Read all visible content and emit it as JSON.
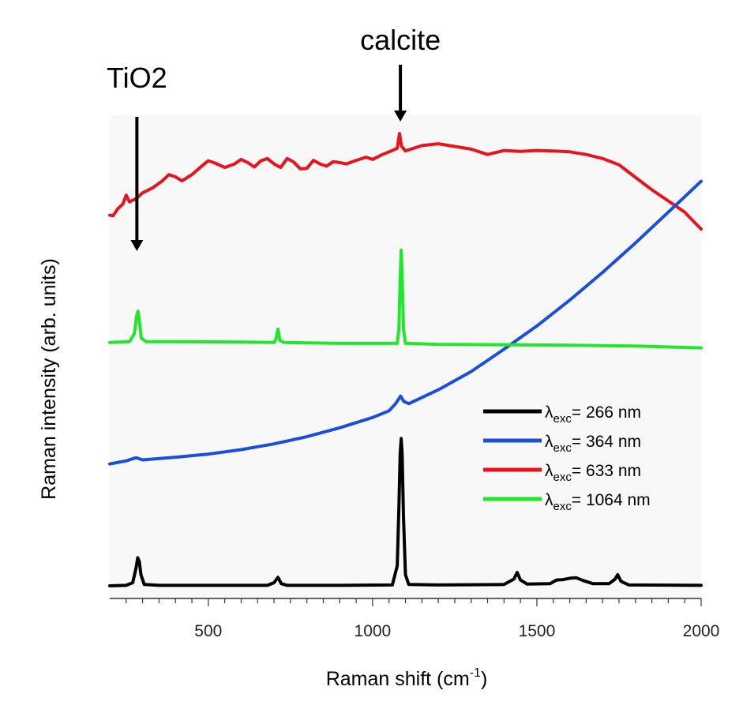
{
  "chart_data": {
    "type": "line",
    "xlabel": "Raman shift (cm",
    "xlabel_sup": "-1",
    "xlabel_end": ")",
    "ylabel": "Raman intensity (arb. units)",
    "xlim": [
      200,
      2000
    ],
    "ylim": [
      0,
      100
    ],
    "x_ticks": [
      {
        "value": 500,
        "label": "500"
      },
      {
        "value": 1000,
        "label": "1000"
      },
      {
        "value": 1500,
        "label": "1500"
      },
      {
        "value": 2000,
        "label": "2000"
      }
    ],
    "annotations": [
      {
        "text": "TiO2",
        "x": 285
      },
      {
        "text": "calcite",
        "x": 1087
      }
    ],
    "legend_position": "lower-right",
    "series": [
      {
        "name": "= 266 nm",
        "lambda": "λ",
        "sub": "exc",
        "color": "#000000",
        "points": [
          [
            200,
            2.5
          ],
          [
            250,
            2.6
          ],
          [
            270,
            3.2
          ],
          [
            280,
            6.5
          ],
          [
            285,
            8.8
          ],
          [
            290,
            8.0
          ],
          [
            295,
            5.0
          ],
          [
            305,
            2.8
          ],
          [
            350,
            2.6
          ],
          [
            500,
            2.6
          ],
          [
            680,
            2.6
          ],
          [
            700,
            3.2
          ],
          [
            712,
            4.4
          ],
          [
            722,
            3.0
          ],
          [
            740,
            2.6
          ],
          [
            900,
            2.6
          ],
          [
            1060,
            2.7
          ],
          [
            1075,
            7.0
          ],
          [
            1080,
            20.0
          ],
          [
            1084,
            32.0
          ],
          [
            1087,
            35.5
          ],
          [
            1090,
            32.0
          ],
          [
            1094,
            18.0
          ],
          [
            1100,
            5.0
          ],
          [
            1110,
            2.8
          ],
          [
            1200,
            2.7
          ],
          [
            1400,
            2.8
          ],
          [
            1430,
            4.0
          ],
          [
            1440,
            5.5
          ],
          [
            1450,
            3.8
          ],
          [
            1470,
            2.9
          ],
          [
            1540,
            3.0
          ],
          [
            1560,
            3.8
          ],
          [
            1580,
            3.9
          ],
          [
            1600,
            4.2
          ],
          [
            1620,
            4.3
          ],
          [
            1640,
            3.7
          ],
          [
            1670,
            3.0
          ],
          [
            1720,
            3.0
          ],
          [
            1738,
            4.0
          ],
          [
            1746,
            5.0
          ],
          [
            1756,
            3.5
          ],
          [
            1780,
            2.7
          ],
          [
            2000,
            2.6
          ]
        ]
      },
      {
        "name": "= 364 nm",
        "lambda": "λ",
        "sub": "exc",
        "color": "#1a4fdc",
        "points": [
          [
            200,
            29.8
          ],
          [
            250,
            30.5
          ],
          [
            280,
            31.2
          ],
          [
            300,
            30.7
          ],
          [
            400,
            31.3
          ],
          [
            500,
            32.0
          ],
          [
            600,
            33.0
          ],
          [
            700,
            34.3
          ],
          [
            800,
            35.9
          ],
          [
            900,
            37.9
          ],
          [
            1000,
            40.2
          ],
          [
            1050,
            41.7
          ],
          [
            1070,
            43.3
          ],
          [
            1085,
            45.0
          ],
          [
            1095,
            43.8
          ],
          [
            1110,
            43.3
          ],
          [
            1200,
            46.4
          ],
          [
            1300,
            50.5
          ],
          [
            1400,
            55.5
          ],
          [
            1500,
            60.7
          ],
          [
            1600,
            66.5
          ],
          [
            1700,
            72.7
          ],
          [
            1800,
            79.3
          ],
          [
            1900,
            86.2
          ],
          [
            2000,
            93.1
          ]
        ]
      },
      {
        "name": "= 633 nm",
        "lambda": "λ",
        "sub": "exc",
        "color": "#e8141c",
        "points": [
          [
            200,
            85.5
          ],
          [
            210,
            85.4
          ],
          [
            225,
            87.0
          ],
          [
            240,
            88.0
          ],
          [
            250,
            90.0
          ],
          [
            260,
            88.5
          ],
          [
            280,
            89.2
          ],
          [
            300,
            90.5
          ],
          [
            330,
            91.6
          ],
          [
            360,
            93.2
          ],
          [
            380,
            94.6
          ],
          [
            400,
            94.1
          ],
          [
            420,
            93.2
          ],
          [
            450,
            94.6
          ],
          [
            480,
            96.5
          ],
          [
            500,
            97.7
          ],
          [
            520,
            97.2
          ],
          [
            550,
            96.2
          ],
          [
            580,
            97.0
          ],
          [
            600,
            98.0
          ],
          [
            620,
            97.3
          ],
          [
            640,
            96.3
          ],
          [
            660,
            97.7
          ],
          [
            680,
            98.2
          ],
          [
            700,
            97.0
          ],
          [
            720,
            96.2
          ],
          [
            740,
            98.2
          ],
          [
            760,
            97.4
          ],
          [
            780,
            95.9
          ],
          [
            800,
            96.0
          ],
          [
            820,
            97.8
          ],
          [
            840,
            97.0
          ],
          [
            860,
            96.5
          ],
          [
            880,
            97.5
          ],
          [
            900,
            97.3
          ],
          [
            920,
            97.0
          ],
          [
            950,
            97.8
          ],
          [
            980,
            98.5
          ],
          [
            1000,
            98.0
          ],
          [
            1030,
            99.1
          ],
          [
            1060,
            100.0
          ],
          [
            1075,
            100.5
          ],
          [
            1082,
            103.8
          ],
          [
            1088,
            101.0
          ],
          [
            1100,
            99.9
          ],
          [
            1150,
            101.1
          ],
          [
            1200,
            101.5
          ],
          [
            1250,
            100.9
          ],
          [
            1300,
            100.3
          ],
          [
            1350,
            99.1
          ],
          [
            1400,
            100.0
          ],
          [
            1450,
            99.8
          ],
          [
            1500,
            100.0
          ],
          [
            1550,
            99.9
          ],
          [
            1600,
            99.7
          ],
          [
            1650,
            99.1
          ],
          [
            1700,
            98.2
          ],
          [
            1750,
            96.8
          ],
          [
            1800,
            94.0
          ],
          [
            1850,
            91.2
          ],
          [
            1900,
            88.7
          ],
          [
            1950,
            86.2
          ],
          [
            1980,
            83.9
          ],
          [
            2000,
            82.4
          ]
        ]
      },
      {
        "name": "= 1064 nm",
        "lambda": "λ",
        "sub": "exc",
        "color": "#22e62a",
        "points": [
          [
            200,
            57.0
          ],
          [
            260,
            57.2
          ],
          [
            275,
            59.0
          ],
          [
            282,
            63.0
          ],
          [
            286,
            64.0
          ],
          [
            290,
            62.0
          ],
          [
            296,
            58.0
          ],
          [
            310,
            57.2
          ],
          [
            400,
            57.2
          ],
          [
            600,
            57.1
          ],
          [
            700,
            57.0
          ],
          [
            706,
            57.8
          ],
          [
            712,
            60.0
          ],
          [
            718,
            57.5
          ],
          [
            730,
            57.0
          ],
          [
            900,
            56.8
          ],
          [
            1075,
            56.8
          ],
          [
            1080,
            60.0
          ],
          [
            1084,
            71.0
          ],
          [
            1087,
            77.7
          ],
          [
            1090,
            72.0
          ],
          [
            1094,
            60.0
          ],
          [
            1100,
            56.8
          ],
          [
            1200,
            56.6
          ],
          [
            1400,
            56.5
          ],
          [
            1600,
            56.4
          ],
          [
            1800,
            56.2
          ],
          [
            2000,
            55.8
          ]
        ]
      }
    ]
  }
}
